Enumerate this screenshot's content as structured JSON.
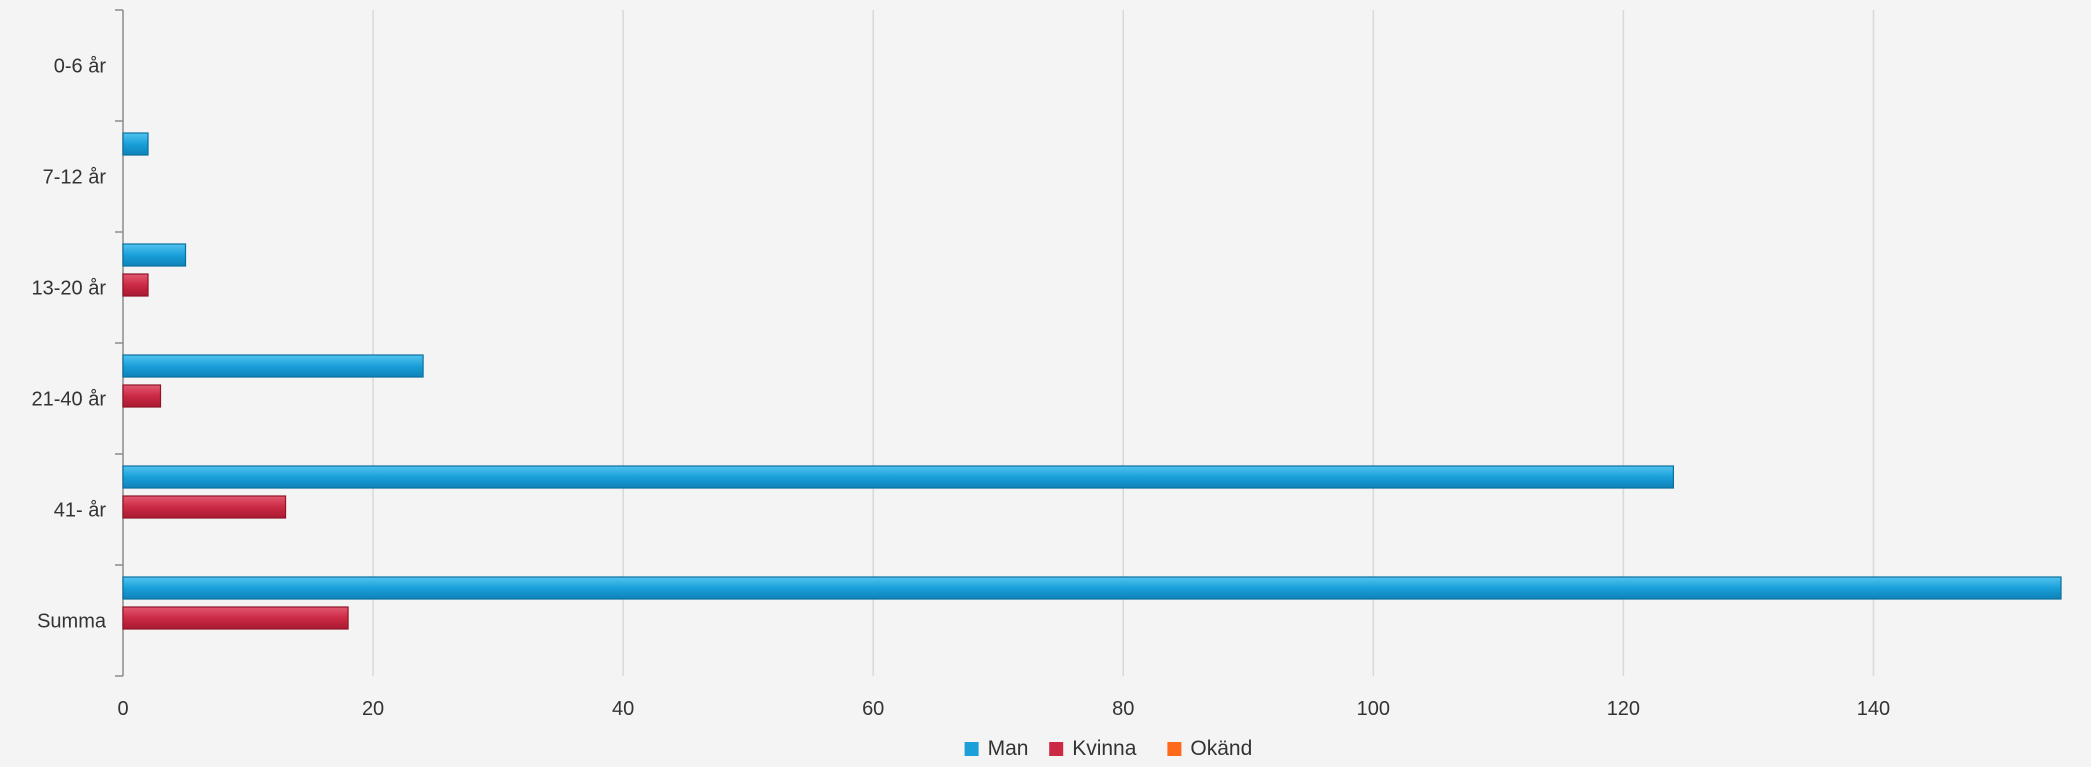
{
  "chart_data": {
    "type": "bar",
    "orientation": "horizontal",
    "categories": [
      "0-6 år",
      "7-12 år",
      "13-20 år",
      "21-40 år",
      "41- år",
      "Summa"
    ],
    "series": [
      {
        "name": "Man",
        "color": "#1a9fd9",
        "values": [
          0,
          2,
          5,
          24,
          124,
          155
        ]
      },
      {
        "name": "Kvinna",
        "color": "#cc2a44",
        "values": [
          0,
          0,
          2,
          3,
          13,
          18
        ]
      },
      {
        "name": "Okänd",
        "color": "#ff6a1a",
        "values": [
          0,
          0,
          0,
          0,
          0,
          0
        ]
      }
    ],
    "xlim": [
      0,
      155
    ],
    "xticks": [
      0,
      20,
      40,
      60,
      80,
      100,
      120,
      140
    ],
    "grid": true,
    "legend_position": "bottom-center"
  }
}
